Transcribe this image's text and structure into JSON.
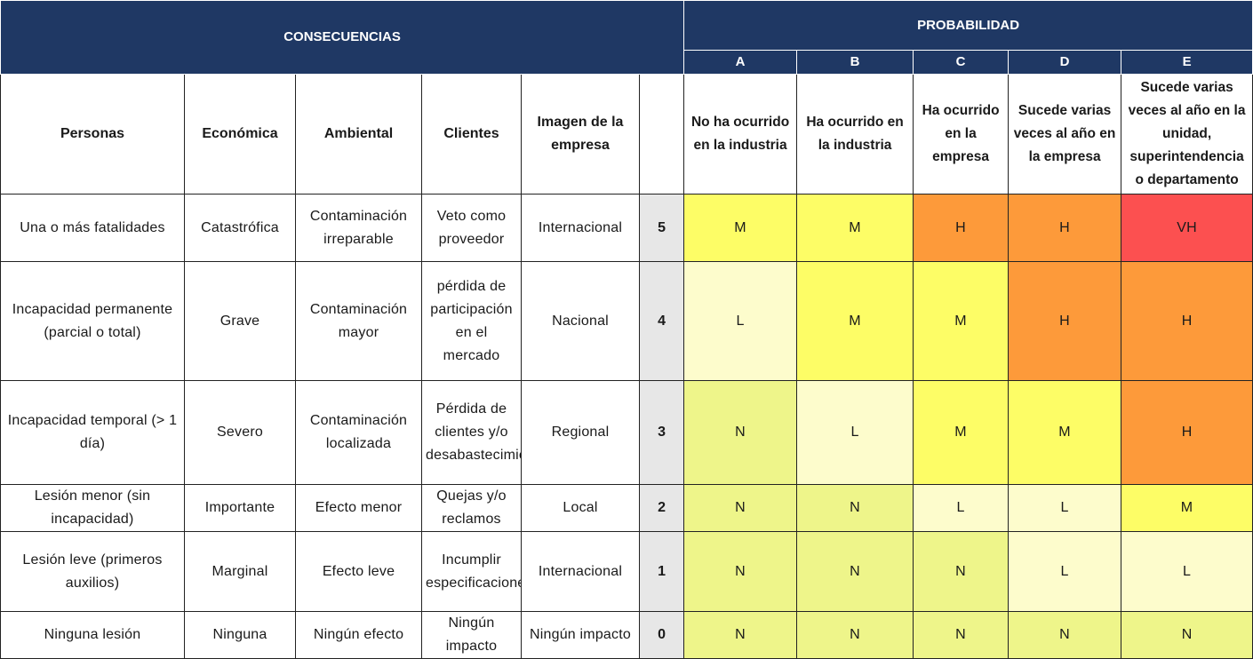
{
  "header": {
    "consecuencias": "CONSECUENCIAS",
    "probabilidad": "PROBABILIDAD",
    "letters": [
      "A",
      "B",
      "C",
      "D",
      "E"
    ]
  },
  "columns": {
    "personas": "Personas",
    "economica": "Económica",
    "ambiental": "Ambiental",
    "clientes": "Clientes",
    "imagen": "Imagen de la empresa",
    "nivel": ""
  },
  "probabilities": [
    "No ha ocurrido en la industria",
    "Ha ocurrido en la industria",
    "Ha ocurrido en la empresa",
    "Sucede varias veces al año en la empresa",
    "Sucede varias veces al año en la unidad, superintendencia o departamento"
  ],
  "risk_colors": {
    "N": "#eef58a",
    "L": "#fdfccc",
    "M": "#fdfd66",
    "H": "#fd9a3a",
    "VH": "#fc5050"
  },
  "rows": [
    {
      "personas": "Una o más fatalidades",
      "economica": "Catastrófica",
      "ambiental": "Contaminación irreparable",
      "clientes": "Veto como proveedor",
      "imagen": "Internacional",
      "nivel": "5",
      "risk": [
        "M",
        "M",
        "H",
        "H",
        "VH"
      ]
    },
    {
      "personas": "Incapacidad permanente (parcial o total)",
      "economica": "Grave",
      "ambiental": "Contaminación mayor",
      "clientes": "pérdida de participación en el mercado",
      "imagen": "Nacional",
      "nivel": "4",
      "risk": [
        "L",
        "M",
        "M",
        "H",
        "H"
      ]
    },
    {
      "personas": "Incapacidad temporal (> 1 día)",
      "economica": "Severo",
      "ambiental": "Contaminación localizada",
      "clientes": "Pérdida de clientes y/o desabastecimiento",
      "imagen": "Regional",
      "nivel": "3",
      "risk": [
        "N",
        "L",
        "M",
        "M",
        "H"
      ]
    },
    {
      "personas": "Lesión menor (sin incapacidad)",
      "economica": "Importante",
      "ambiental": "Efecto menor",
      "clientes": "Quejas y/o reclamos",
      "imagen": "Local",
      "nivel": "2",
      "risk": [
        "N",
        "N",
        "L",
        "L",
        "M"
      ]
    },
    {
      "personas": "Lesión leve (primeros auxilios)",
      "economica": "Marginal",
      "ambiental": "Efecto leve",
      "clientes": "Incumplir especificaciones",
      "imagen": "Internacional",
      "nivel": "1",
      "risk": [
        "N",
        "N",
        "N",
        "L",
        "L"
      ]
    },
    {
      "personas": "Ninguna lesión",
      "economica": "Ninguna",
      "ambiental": "Ningún efecto",
      "clientes": "Ningún impacto",
      "imagen": "Ningún impacto",
      "nivel": "0",
      "risk": [
        "N",
        "N",
        "N",
        "N",
        "N"
      ]
    }
  ]
}
